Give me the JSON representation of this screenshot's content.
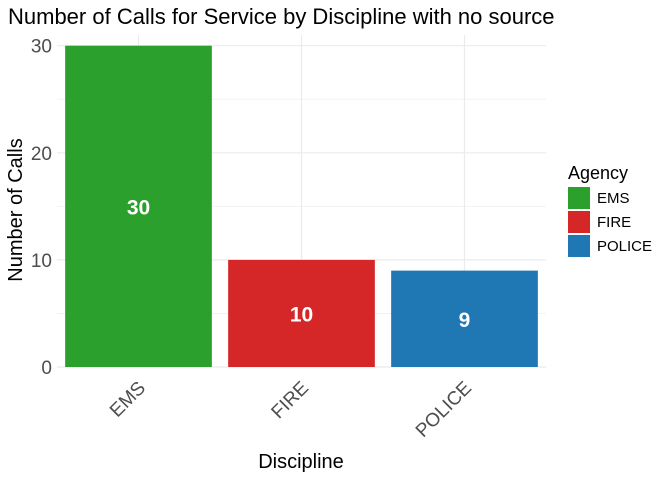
{
  "chart_data": {
    "type": "bar",
    "title": "Number of Calls for Service by Discipline with no source",
    "xlabel": "Discipline",
    "ylabel": "Number of Calls",
    "categories": [
      "EMS",
      "FIRE",
      "POLICE"
    ],
    "values": [
      30,
      10,
      9
    ],
    "data_labels": [
      "30",
      "10",
      "9"
    ],
    "colors": [
      "#2ca02c",
      "#d62728",
      "#1f77b4"
    ],
    "ylim": [
      0,
      31
    ],
    "yticks": [
      0,
      10,
      20,
      30
    ],
    "ytick_labels": [
      "0",
      "10",
      "20",
      "30"
    ],
    "grid": true,
    "legend": {
      "title": "Agency",
      "placement": "right",
      "entries": [
        "EMS",
        "FIRE",
        "POLICE"
      ]
    }
  }
}
